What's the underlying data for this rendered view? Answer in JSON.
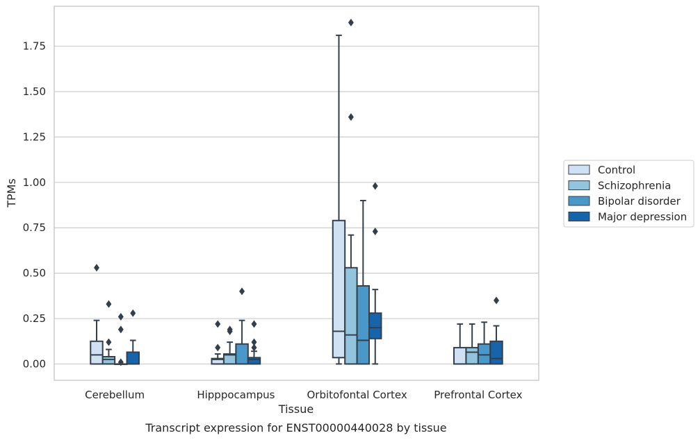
{
  "caption": "Transcript expression for ENST00000440028 by tissue",
  "colors": {
    "Control": "#cfe1f2",
    "Schizophrenia": "#93c4de",
    "Bipolar disorder": "#4a98c9",
    "Major depression": "#1764ab",
    "box_edge": "#333f4b",
    "grid": "#cccccc",
    "spine": "#cccccc"
  },
  "chart_data": {
    "type": "box",
    "xlabel": "Tissue",
    "ylabel": "TPMs",
    "ylim": [
      -0.09,
      1.97
    ],
    "yticks": [
      0.0,
      0.25,
      0.5,
      0.75,
      1.0,
      1.25,
      1.5,
      1.75
    ],
    "ytick_labels": [
      "0.00",
      "0.25",
      "0.50",
      "0.75",
      "1.00",
      "1.25",
      "1.50",
      "1.75"
    ],
    "grid": "horizontal",
    "legend_position": "right",
    "categories": [
      "Cerebellum",
      "Hipppocampus",
      "Orbitofontal Cortex",
      "Prefrontal Cortex"
    ],
    "series": [
      {
        "name": "Control",
        "boxes": [
          {
            "whislo": 0.0,
            "q1": 0.0,
            "med": 0.05,
            "q3": 0.125,
            "whishi": 0.24,
            "fliers": [
              0.53
            ]
          },
          {
            "whislo": 0.0,
            "q1": 0.0,
            "med": 0.025,
            "q3": 0.03,
            "whishi": 0.055,
            "fliers": [
              0.09,
              0.22
            ]
          },
          {
            "whislo": 0.0,
            "q1": 0.035,
            "med": 0.18,
            "q3": 0.79,
            "whishi": 1.81,
            "fliers": []
          },
          {
            "whislo": 0.0,
            "q1": 0.0,
            "med": 0.0,
            "q3": 0.09,
            "whishi": 0.22,
            "fliers": []
          }
        ]
      },
      {
        "name": "Schizophrenia",
        "boxes": [
          {
            "whislo": 0.0,
            "q1": 0.0,
            "med": 0.025,
            "q3": 0.04,
            "whishi": 0.08,
            "fliers": [
              0.12,
              0.33
            ]
          },
          {
            "whislo": 0.0,
            "q1": 0.0,
            "med": 0.05,
            "q3": 0.055,
            "whishi": 0.12,
            "fliers": [
              0.18,
              0.19
            ]
          },
          {
            "whislo": 0.0,
            "q1": 0.0,
            "med": 0.16,
            "q3": 0.53,
            "whishi": 0.71,
            "fliers": [
              1.36,
              1.88
            ]
          },
          {
            "whislo": 0.0,
            "q1": 0.0,
            "med": 0.065,
            "q3": 0.09,
            "whishi": 0.22,
            "fliers": []
          }
        ]
      },
      {
        "name": "Bipolar disorder",
        "boxes": [
          {
            "whislo": 0.0,
            "q1": 0.0,
            "med": 0.0,
            "q3": 0.0,
            "whishi": 0.0,
            "fliers": [
              0.01,
              0.19,
              0.26
            ]
          },
          {
            "whislo": 0.0,
            "q1": 0.0,
            "med": 0.0,
            "q3": 0.11,
            "whishi": 0.24,
            "fliers": [
              0.4
            ]
          },
          {
            "whislo": 0.0,
            "q1": 0.0,
            "med": 0.13,
            "q3": 0.43,
            "whishi": 0.9,
            "fliers": []
          },
          {
            "whislo": 0.0,
            "q1": 0.0,
            "med": 0.05,
            "q3": 0.11,
            "whishi": 0.23,
            "fliers": []
          }
        ]
      },
      {
        "name": "Major depression",
        "boxes": [
          {
            "whislo": 0.0,
            "q1": 0.0,
            "med": 0.0,
            "q3": 0.065,
            "whishi": 0.13,
            "fliers": [
              0.28
            ]
          },
          {
            "whislo": 0.0,
            "q1": 0.0,
            "med": 0.025,
            "q3": 0.035,
            "whishi": 0.07,
            "fliers": [
              0.09,
              0.12,
              0.22
            ]
          },
          {
            "whislo": 0.0,
            "q1": 0.14,
            "med": 0.2,
            "q3": 0.28,
            "whishi": 0.41,
            "fliers": [
              0.73,
              0.98
            ]
          },
          {
            "whislo": 0.0,
            "q1": 0.0,
            "med": 0.03,
            "q3": 0.125,
            "whishi": 0.21,
            "fliers": [
              0.35
            ]
          }
        ]
      }
    ]
  }
}
